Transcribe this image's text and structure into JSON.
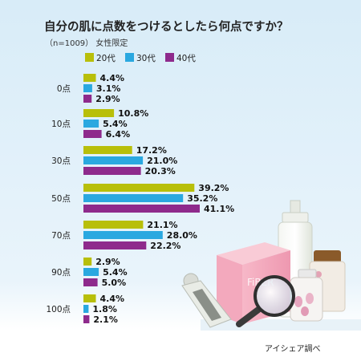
{
  "title": "自分の肌に点数をつけるとしたら何点ですか？",
  "subtitle": "（n=1009） 女性限定",
  "source": "アイシェア調べ",
  "product_label": "FiBER",
  "colors": {
    "background_top": "#d8ecf8",
    "background_bottom": "#ffffff",
    "s20": "#b8bf0a",
    "s30": "#2aa8e0",
    "s40": "#8e2a8c"
  },
  "chart_data": {
    "type": "bar",
    "orientation": "horizontal",
    "title": "自分の肌に点数をつけるとしたら何点ですか？",
    "subtitle": "（n=1009） 女性限定",
    "categories": [
      "0点",
      "10点",
      "30点",
      "50点",
      "70点",
      "90点",
      "100点"
    ],
    "series": [
      {
        "name": "20代",
        "color": "#b8bf0a",
        "values": [
          4.4,
          10.8,
          17.2,
          39.2,
          21.1,
          2.9,
          4.4
        ],
        "labels": [
          "4.4%",
          "10.8%",
          "17.2%",
          "39.2%",
          "21.1%",
          "2.9%",
          "4.4%"
        ]
      },
      {
        "name": "30代",
        "color": "#2aa8e0",
        "values": [
          3.1,
          5.4,
          21.0,
          35.2,
          28.0,
          5.4,
          1.8
        ],
        "labels": [
          "3.1%",
          "5.4%",
          "21.0%",
          "35.2%",
          "28.0%",
          "5.4%",
          "1.8%"
        ]
      },
      {
        "name": "40代",
        "color": "#8e2a8c",
        "values": [
          2.9,
          6.4,
          20.3,
          41.1,
          22.2,
          5.0,
          2.1
        ],
        "labels": [
          "2.9%",
          "6.4%",
          "20.3%",
          "41.1%",
          "22.2%",
          "5.0%",
          "2.1%"
        ]
      }
    ],
    "xlim": [
      0,
      41.1
    ],
    "grid": false,
    "legend": "top"
  }
}
